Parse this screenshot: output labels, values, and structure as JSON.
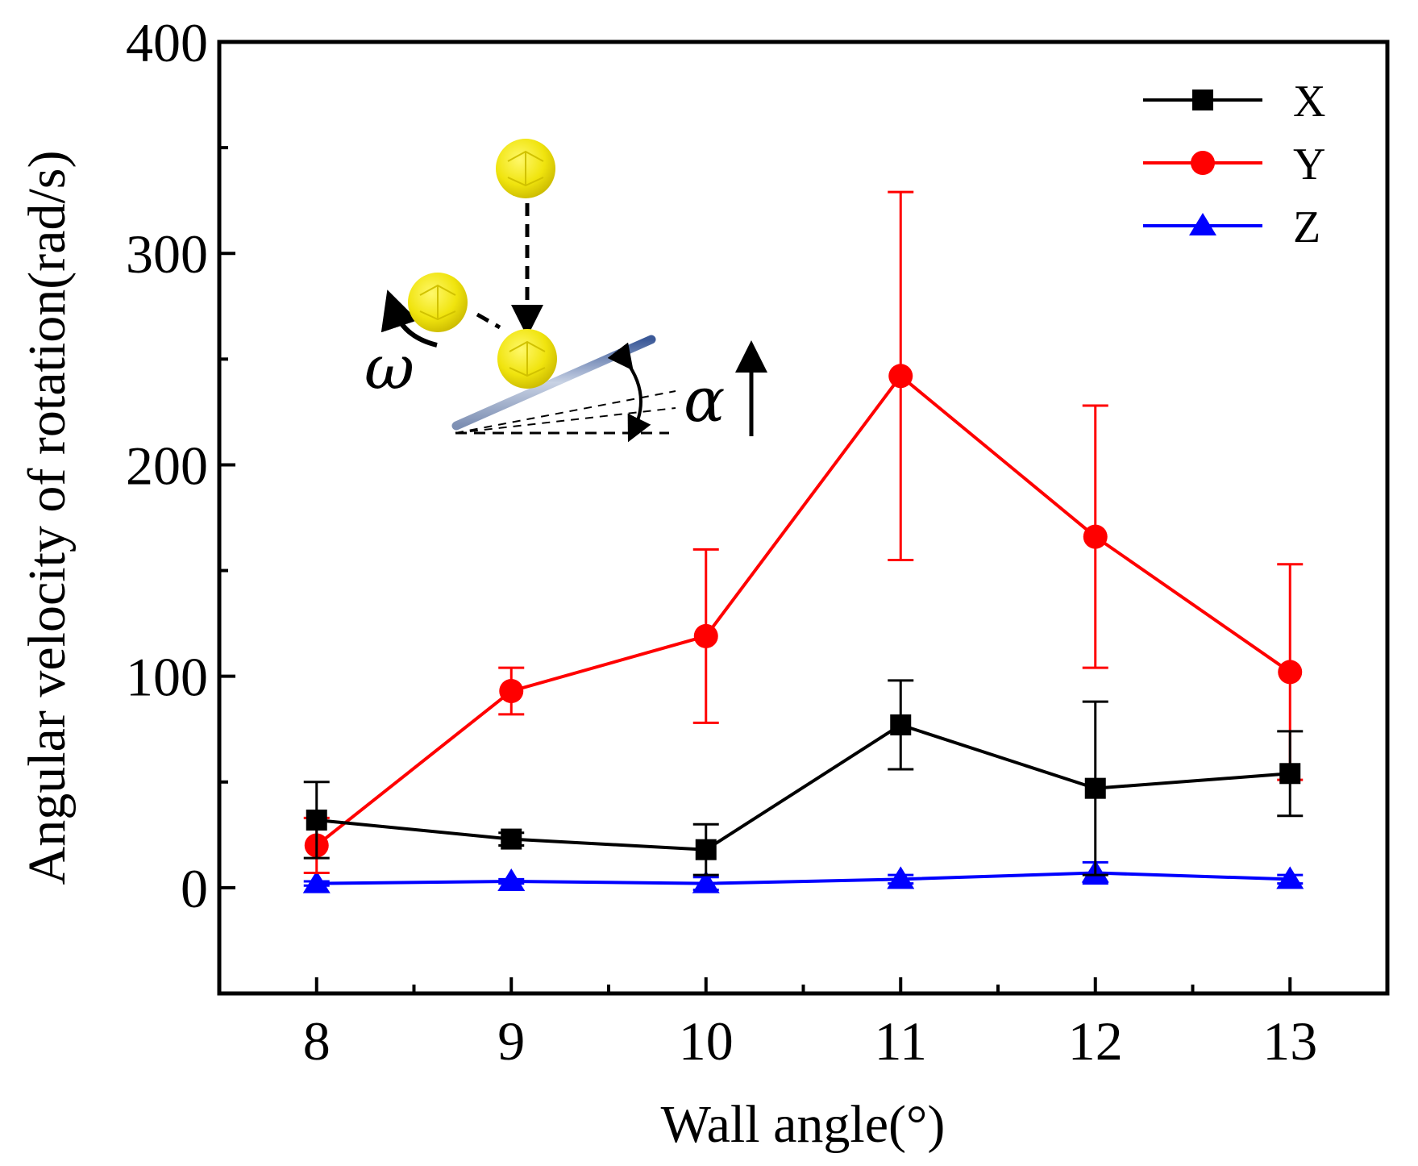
{
  "chart_data": {
    "type": "line",
    "xlabel": "Wall angle(°)",
    "ylabel": "Angular velocity of rotation(rad/s)",
    "x": [
      8,
      9,
      10,
      11,
      12,
      13
    ],
    "x_tick_labels": [
      "8",
      "9",
      "10",
      "11",
      "12",
      "13"
    ],
    "xlim": [
      7.5,
      13.5
    ],
    "ylim": [
      -50,
      400
    ],
    "y_ticks": [
      0,
      100,
      200,
      300,
      400
    ],
    "y_tick_labels": [
      "0",
      "100",
      "200",
      "300",
      "400"
    ],
    "grid": false,
    "legend_position": "top-right",
    "series": [
      {
        "name": "X",
        "color": "#000000",
        "marker": "square",
        "values": [
          32,
          23,
          18,
          77,
          47,
          54
        ],
        "errors": [
          18,
          3,
          12,
          21,
          41,
          20
        ]
      },
      {
        "name": "Y",
        "color": "#ff0000",
        "marker": "circle",
        "values": [
          20,
          93,
          119,
          242,
          166,
          102
        ],
        "errors": [
          13,
          11,
          41,
          87,
          62,
          51
        ]
      },
      {
        "name": "Z",
        "color": "#0000ff",
        "marker": "triangle",
        "values": [
          2,
          3,
          2,
          4,
          7,
          4
        ],
        "errors": [
          1,
          1,
          3,
          2,
          5,
          2
        ]
      }
    ],
    "inset": {
      "omega_symbol": "ω",
      "alpha_symbol": "α",
      "particle_color": "#f2e81a"
    }
  }
}
